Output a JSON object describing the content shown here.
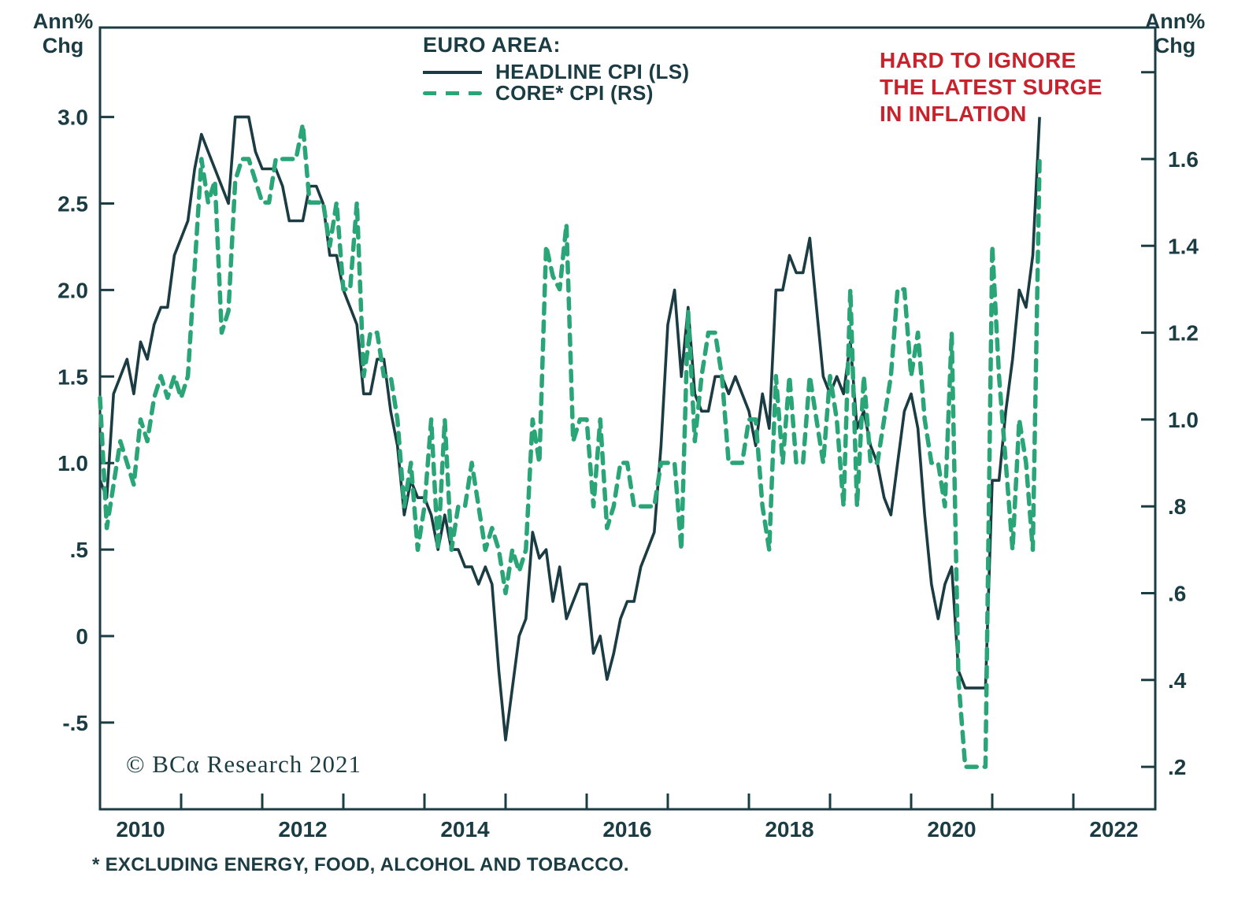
{
  "colors": {
    "dark": "#1b3c43",
    "green": "#2aa578",
    "red": "#c8232c",
    "background": "#ffffff"
  },
  "axis_labels": {
    "left": [
      "Ann%",
      "Chg"
    ],
    "right": [
      "Ann%",
      "Chg"
    ]
  },
  "legend": {
    "title": "EURO AREA:"
  },
  "annotation": {
    "lines": [
      "HARD TO IGNORE",
      "THE LATEST SURGE",
      "IN INFLATION"
    ]
  },
  "copyright_text": "© BCα Research 2021",
  "footnote": "* EXCLUDING ENERGY, FOOD, ALCOHOL AND TOBACCO.",
  "chart_data": {
    "type": "line",
    "title": "EURO AREA: HEADLINE CPI (LS) vs CORE* CPI (RS)",
    "frequency": "monthly",
    "x_start": "2010-01",
    "x_end": "2021-08",
    "grid": "off",
    "legend_position": "top-center",
    "x_axis": {
      "tick_years": [
        2011,
        2012,
        2013,
        2014,
        2015,
        2016,
        2017,
        2018,
        2019,
        2020,
        2021,
        2022
      ],
      "label_years": [
        "2010",
        "2012",
        "2014",
        "2016",
        "2018",
        "2020",
        "2022"
      ]
    },
    "left_axis": {
      "units": "Ann% Chg",
      "range": [
        -1.0,
        3.5
      ],
      "ticks": [
        {
          "value": 3.0,
          "label": "3.0"
        },
        {
          "value": 2.5,
          "label": "2.5"
        },
        {
          "value": 2.0,
          "label": "2.0"
        },
        {
          "value": 1.5,
          "label": "1.5"
        },
        {
          "value": 1.0,
          "label": "1.0"
        },
        {
          "value": 0.5,
          "label": ".5"
        },
        {
          "value": 0.0,
          "label": "0"
        },
        {
          "value": -0.5,
          "label": "-.5"
        }
      ]
    },
    "right_axis": {
      "units": "Ann% Chg",
      "range": [
        0.1,
        1.9
      ],
      "ticks": [
        {
          "value": 1.8,
          "label": ""
        },
        {
          "value": 1.6,
          "label": "1.6"
        },
        {
          "value": 1.4,
          "label": "1.4"
        },
        {
          "value": 1.2,
          "label": "1.2"
        },
        {
          "value": 1.0,
          "label": "1.0"
        },
        {
          "value": 0.8,
          "label": ".8"
        },
        {
          "value": 0.6,
          "label": ".6"
        },
        {
          "value": 0.4,
          "label": ".4"
        },
        {
          "value": 0.2,
          "label": ".2"
        }
      ]
    },
    "series": [
      {
        "name": "HEADLINE CPI (LS)",
        "axis": "left",
        "style": "solid",
        "color": "#1b3c43",
        "values": [
          0.9,
          0.8,
          1.4,
          1.5,
          1.6,
          1.4,
          1.7,
          1.6,
          1.8,
          1.9,
          1.9,
          2.2,
          2.3,
          2.4,
          2.7,
          2.9,
          2.8,
          2.7,
          2.6,
          2.5,
          3.0,
          3.0,
          3.0,
          2.8,
          2.7,
          2.7,
          2.7,
          2.6,
          2.4,
          2.4,
          2.4,
          2.6,
          2.6,
          2.5,
          2.2,
          2.2,
          2.0,
          1.9,
          1.8,
          1.4,
          1.4,
          1.6,
          1.6,
          1.3,
          1.1,
          0.7,
          0.9,
          0.8,
          0.8,
          0.7,
          0.5,
          0.7,
          0.5,
          0.5,
          0.4,
          0.4,
          0.3,
          0.4,
          0.3,
          -0.2,
          -0.6,
          -0.3,
          0.0,
          0.1,
          0.6,
          0.45,
          0.5,
          0.2,
          0.4,
          0.1,
          0.2,
          0.3,
          0.3,
          -0.1,
          0.0,
          -0.25,
          -0.1,
          0.1,
          0.2,
          0.2,
          0.4,
          0.5,
          0.6,
          1.1,
          1.8,
          2.0,
          1.5,
          1.9,
          1.4,
          1.3,
          1.3,
          1.5,
          1.5,
          1.4,
          1.5,
          1.4,
          1.3,
          1.1,
          1.4,
          1.2,
          2.0,
          2.0,
          2.2,
          2.1,
          2.1,
          2.3,
          1.9,
          1.5,
          1.4,
          1.5,
          1.4,
          1.7,
          1.2,
          1.3,
          1.1,
          1.0,
          0.8,
          0.7,
          1.0,
          1.3,
          1.4,
          1.2,
          0.7,
          0.3,
          0.1,
          0.3,
          0.4,
          -0.2,
          -0.3,
          -0.3,
          -0.3,
          -0.3,
          0.9,
          0.9,
          1.3,
          1.6,
          2.0,
          1.9,
          2.2,
          3.0
        ]
      },
      {
        "name": "CORE* CPI (RS)",
        "axis": "right",
        "style": "dashed",
        "color": "#2aa578",
        "values": [
          1.05,
          0.75,
          0.85,
          0.95,
          0.9,
          0.85,
          1.0,
          0.95,
          1.05,
          1.1,
          1.05,
          1.1,
          1.05,
          1.1,
          1.35,
          1.6,
          1.5,
          1.55,
          1.2,
          1.25,
          1.55,
          1.6,
          1.6,
          1.55,
          1.5,
          1.5,
          1.6,
          1.6,
          1.6,
          1.6,
          1.68,
          1.5,
          1.5,
          1.5,
          1.4,
          1.5,
          1.3,
          1.3,
          1.5,
          1.1,
          1.2,
          1.2,
          1.1,
          1.1,
          1.0,
          0.8,
          0.9,
          0.7,
          0.8,
          1.0,
          0.7,
          1.0,
          0.7,
          0.8,
          0.8,
          0.9,
          0.8,
          0.7,
          0.75,
          0.7,
          0.6,
          0.7,
          0.65,
          0.7,
          1.0,
          0.9,
          1.4,
          1.33,
          1.3,
          1.45,
          0.95,
          1.0,
          1.0,
          0.8,
          1.0,
          0.75,
          0.8,
          0.9,
          0.9,
          0.8,
          0.8,
          0.8,
          0.8,
          0.9,
          0.9,
          0.9,
          0.7,
          1.25,
          0.95,
          1.1,
          1.2,
          1.2,
          1.1,
          0.9,
          0.9,
          0.9,
          1.0,
          1.0,
          0.8,
          0.7,
          1.1,
          0.9,
          1.1,
          0.9,
          0.9,
          1.1,
          1.0,
          0.9,
          1.1,
          1.0,
          0.8,
          1.3,
          0.8,
          1.1,
          0.9,
          0.9,
          1.0,
          1.1,
          1.3,
          1.3,
          1.1,
          1.2,
          1.0,
          0.9,
          0.9,
          0.8,
          1.2,
          0.4,
          0.2,
          0.2,
          0.2,
          0.2,
          1.4,
          1.1,
          0.9,
          0.7,
          1.0,
          0.9,
          0.7,
          1.6
        ]
      }
    ]
  }
}
